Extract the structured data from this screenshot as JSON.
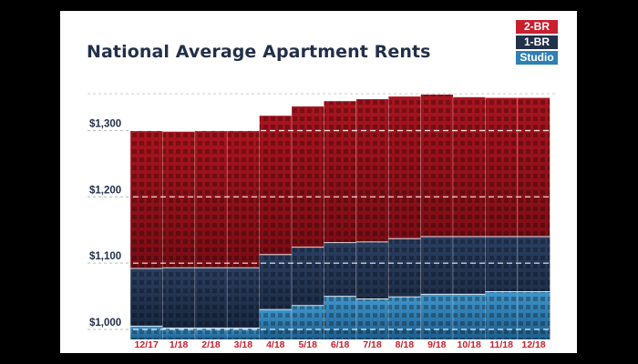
{
  "chart_data": {
    "type": "bar",
    "title": "National Average Apartment Rents",
    "categories": [
      "12/17",
      "1/18",
      "2/18",
      "3/18",
      "4/18",
      "5/18",
      "6/18",
      "7/18",
      "8/18",
      "9/18",
      "10/18",
      "11/18",
      "12/18"
    ],
    "series": [
      {
        "name": "2-BR",
        "values": [
          1300,
          1299,
          1300,
          1300,
          1323,
          1337,
          1345,
          1348,
          1352,
          1355,
          1351,
          1350,
          1350
        ]
      },
      {
        "name": "1-BR",
        "values": [
          1092,
          1093,
          1093,
          1093,
          1113,
          1124,
          1131,
          1132,
          1137,
          1140,
          1140,
          1140,
          1140
        ]
      },
      {
        "name": "Studio",
        "values": [
          1005,
          1002,
          1002,
          1002,
          1030,
          1036,
          1050,
          1046,
          1049,
          1053,
          1053,
          1057,
          1057
        ]
      }
    ],
    "y_ticks": [
      {
        "value": 1000,
        "label": "$1,000"
      },
      {
        "value": 1100,
        "label": "$1,100"
      },
      {
        "value": 1200,
        "label": "$1,200"
      },
      {
        "value": 1300,
        "label": "$1,300"
      }
    ],
    "ylim": [
      985,
      1360
    ],
    "grid": true,
    "legend_position": "top-right",
    "colors": {
      "2-BR": "#c8202f",
      "1-BR": "#22304a",
      "Studio": "#2f7fb4"
    }
  }
}
